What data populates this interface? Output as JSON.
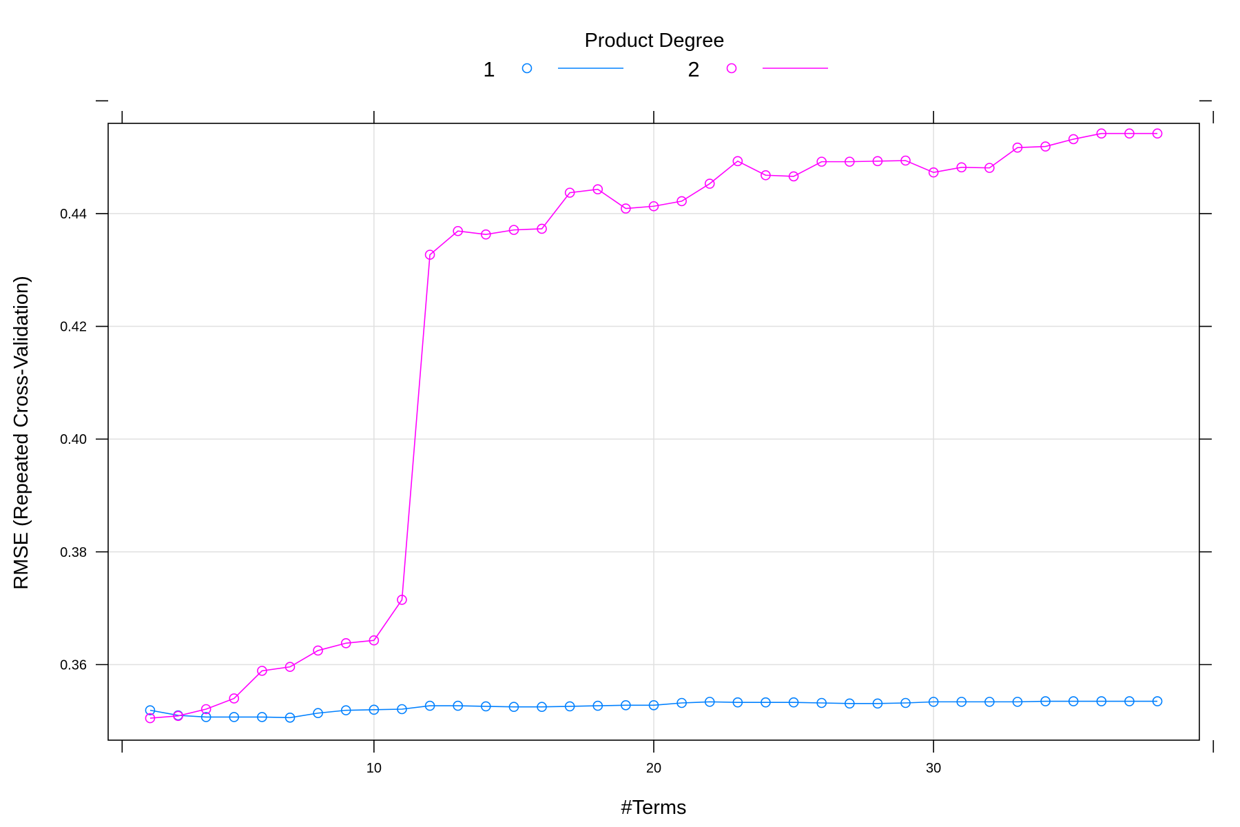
{
  "chart_data": {
    "type": "line",
    "legend": {
      "title": "Product Degree",
      "placement": "top-center"
    },
    "xlabel": "#Terms",
    "ylabel": "RMSE (Repeated Cross-Validation)",
    "xlim": [
      0.5,
      39.5
    ],
    "ylim": [
      0.3466,
      0.456
    ],
    "xticks": [
      10,
      20,
      30
    ],
    "yticks": [
      0.36,
      0.38,
      0.4,
      0.42,
      0.44
    ],
    "ytick_labels": [
      "0.36",
      "0.38",
      "0.40",
      "0.42",
      "0.44"
    ],
    "grid": true,
    "x": [
      2,
      3,
      4,
      5,
      6,
      7,
      8,
      9,
      10,
      11,
      12,
      13,
      14,
      15,
      16,
      17,
      18,
      19,
      20,
      21,
      22,
      23,
      24,
      25,
      26,
      27,
      28,
      29,
      30,
      31,
      32,
      33,
      34,
      35,
      36,
      37,
      38
    ],
    "series": [
      {
        "name": "1",
        "color": "#0080ff",
        "values": [
          0.3519,
          0.351,
          0.3507,
          0.3507,
          0.3507,
          0.3506,
          0.3514,
          0.3519,
          0.352,
          0.3521,
          0.3527,
          0.3527,
          0.3526,
          0.3525,
          0.3525,
          0.3526,
          0.3527,
          0.3528,
          0.3528,
          0.3532,
          0.3534,
          0.3533,
          0.3533,
          0.3533,
          0.3532,
          0.3531,
          0.3531,
          0.3532,
          0.3534,
          0.3534,
          0.3534,
          0.3534,
          0.3535,
          0.3535,
          0.3535,
          0.3535,
          0.3535
        ]
      },
      {
        "name": "2",
        "color": "#ff00ff",
        "values": [
          0.3505,
          0.3509,
          0.3521,
          0.354,
          0.3589,
          0.3596,
          0.3625,
          0.3638,
          0.3643,
          0.3715,
          0.4327,
          0.4369,
          0.4363,
          0.4371,
          0.4373,
          0.4437,
          0.4443,
          0.4409,
          0.4413,
          0.4422,
          0.4453,
          0.4493,
          0.4468,
          0.4466,
          0.4492,
          0.4492,
          0.4493,
          0.4494,
          0.4473,
          0.4482,
          0.4481,
          0.4517,
          0.4519,
          0.4532,
          0.4542,
          0.4542,
          0.4542
        ]
      }
    ]
  }
}
